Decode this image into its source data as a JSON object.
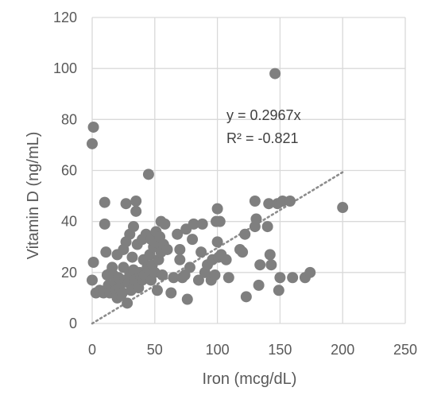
{
  "chart_data": {
    "type": "scatter",
    "xlabel": "Iron (mcg/dL)",
    "ylabel": "Vitamin D (ng/mL)",
    "xlim": [
      0,
      250
    ],
    "ylim": [
      0,
      120
    ],
    "x_ticks": [
      "0",
      "50",
      "100",
      "150",
      "200",
      "250"
    ],
    "y_ticks": [
      "0",
      "20",
      "40",
      "60",
      "80",
      "100",
      "120"
    ],
    "grid": true,
    "legend": "none",
    "marker_color": "#7f7f7f",
    "trendline": {
      "style": "dotted",
      "color": "#8c8c8c",
      "slope": 0.2967,
      "x_range": [
        0,
        200
      ],
      "equation": "y = 0.2967x",
      "r_squared": "R² = -0.821"
    },
    "points": [
      [
        1,
        77
      ],
      [
        0,
        70.5
      ],
      [
        1,
        24
      ],
      [
        0,
        17
      ],
      [
        3,
        12
      ],
      [
        6,
        13
      ],
      [
        9,
        12
      ],
      [
        10,
        47.5
      ],
      [
        10,
        39
      ],
      [
        11,
        28
      ],
      [
        12,
        19
      ],
      [
        13,
        15
      ],
      [
        14,
        12
      ],
      [
        15,
        20
      ],
      [
        16,
        22
      ],
      [
        17,
        19
      ],
      [
        18,
        16
      ],
      [
        19,
        13
      ],
      [
        20,
        10
      ],
      [
        20,
        27
      ],
      [
        21,
        18
      ],
      [
        22,
        14
      ],
      [
        23,
        11
      ],
      [
        24,
        12
      ],
      [
        25,
        22
      ],
      [
        25,
        29
      ],
      [
        26,
        17
      ],
      [
        27,
        32
      ],
      [
        27,
        47
      ],
      [
        28,
        8
      ],
      [
        29,
        16
      ],
      [
        30,
        20
      ],
      [
        30,
        35
      ],
      [
        31,
        13
      ],
      [
        32,
        26
      ],
      [
        33,
        21
      ],
      [
        33,
        38
      ],
      [
        34,
        17
      ],
      [
        35,
        44
      ],
      [
        35,
        48
      ],
      [
        36,
        31
      ],
      [
        37,
        14
      ],
      [
        38,
        20
      ],
      [
        39,
        18
      ],
      [
        40,
        33
      ],
      [
        40,
        17
      ],
      [
        41,
        25
      ],
      [
        42,
        19
      ],
      [
        43,
        35
      ],
      [
        44,
        22
      ],
      [
        45,
        58.5
      ],
      [
        46,
        27
      ],
      [
        47,
        17
      ],
      [
        47,
        33
      ],
      [
        48,
        23
      ],
      [
        49,
        30
      ],
      [
        50,
        20
      ],
      [
        50,
        32
      ],
      [
        51,
        36
      ],
      [
        52,
        13
      ],
      [
        53,
        25
      ],
      [
        54,
        34
      ],
      [
        55,
        28
      ],
      [
        55,
        40
      ],
      [
        56,
        19
      ],
      [
        57,
        31
      ],
      [
        58,
        39
      ],
      [
        60,
        29
      ],
      [
        63,
        12
      ],
      [
        65,
        18
      ],
      [
        68,
        35
      ],
      [
        70,
        29
      ],
      [
        70,
        25
      ],
      [
        72,
        18
      ],
      [
        74,
        19
      ],
      [
        75,
        37
      ],
      [
        76,
        9.5
      ],
      [
        78,
        22
      ],
      [
        80,
        33
      ],
      [
        81,
        39
      ],
      [
        85,
        17
      ],
      [
        87,
        28
      ],
      [
        88,
        39
      ],
      [
        90,
        20
      ],
      [
        92,
        23
      ],
      [
        95,
        17
      ],
      [
        96,
        25
      ],
      [
        98,
        19
      ],
      [
        99,
        40
      ],
      [
        100,
        45
      ],
      [
        100,
        32
      ],
      [
        101,
        26
      ],
      [
        102,
        40
      ],
      [
        103,
        27
      ],
      [
        107,
        25
      ],
      [
        109,
        18
      ],
      [
        118,
        29
      ],
      [
        120,
        28
      ],
      [
        122,
        35
      ],
      [
        123,
        10.5
      ],
      [
        130,
        48
      ],
      [
        130,
        38
      ],
      [
        131,
        41
      ],
      [
        133,
        15
      ],
      [
        134,
        23
      ],
      [
        140,
        38
      ],
      [
        141,
        47
      ],
      [
        142,
        27
      ],
      [
        143,
        23
      ],
      [
        146,
        98
      ],
      [
        148,
        47
      ],
      [
        149,
        13
      ],
      [
        150,
        18
      ],
      [
        152,
        48
      ],
      [
        158,
        48
      ],
      [
        160,
        18
      ],
      [
        170,
        18
      ],
      [
        174,
        20
      ],
      [
        200,
        45.5
      ]
    ]
  }
}
